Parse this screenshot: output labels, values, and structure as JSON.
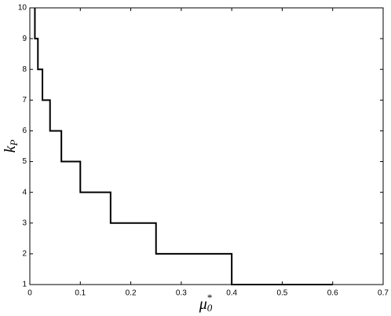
{
  "chart_data": {
    "type": "line",
    "xlabel": {
      "base": "μ",
      "sub": "0",
      "sup": "*"
    },
    "ylabel": {
      "base": "k",
      "sub": "P"
    },
    "x": [
      0.01,
      0.01,
      0.016,
      0.016,
      0.025,
      0.025,
      0.04,
      0.04,
      0.0625,
      0.0625,
      0.1,
      0.1,
      0.16,
      0.16,
      0.25,
      0.25,
      0.4,
      0.4,
      0.6
    ],
    "series": [
      {
        "color": "#000000",
        "values": [
          10,
          9,
          9,
          8,
          8,
          7,
          7,
          6,
          6,
          5,
          5,
          4,
          4,
          3,
          3,
          2,
          2,
          1,
          1
        ]
      }
    ],
    "xlim": [
      0,
      0.7
    ],
    "xticks": [
      0,
      0.1,
      0.2,
      0.3,
      0.4,
      0.5,
      0.6,
      0.7
    ],
    "ylim": [
      1,
      10
    ],
    "yticks": [
      1,
      2,
      3,
      4,
      5,
      6,
      7,
      8,
      9,
      10
    ],
    "grid": false
  }
}
